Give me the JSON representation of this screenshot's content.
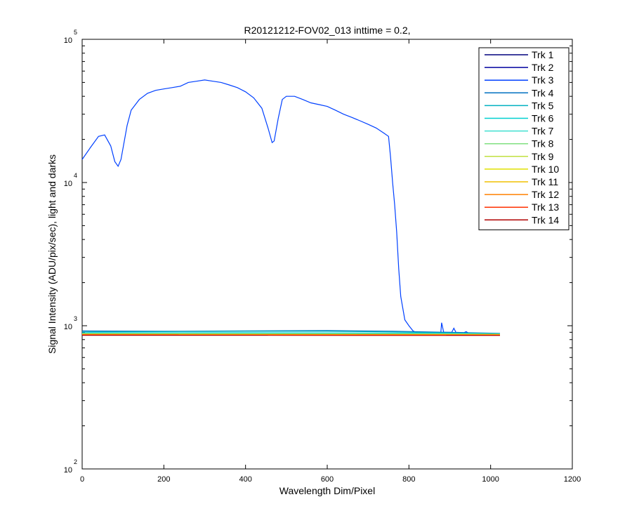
{
  "chart_data": {
    "type": "line",
    "title": "R20121212-FOV02_013 inttime = 0.2,",
    "xlabel": "Wavelength Dim/Pixel",
    "ylabel": "Signal Intensity (ADU/pix/sec), light and darks",
    "xlim": [
      0,
      1200
    ],
    "ylim": [
      100,
      100000
    ],
    "yscale": "log",
    "x_ticks": [
      0,
      200,
      400,
      600,
      800,
      1000,
      1200
    ],
    "x_tick_labels": [
      "0",
      "200",
      "400",
      "600",
      "800",
      "1000",
      "1200"
    ],
    "y_ticks": [
      {
        "value": 100,
        "base": "10",
        "exp": "2"
      },
      {
        "value": 1000,
        "base": "10",
        "exp": "3"
      },
      {
        "value": 10000,
        "base": "10",
        "exp": "4"
      },
      {
        "value": 100000,
        "base": "10",
        "exp": "5"
      }
    ],
    "grid": false,
    "legend_position": "top-right",
    "series": [
      {
        "name": "Trk 1",
        "color": "#00007f",
        "points": [
          [
            0,
            870
          ],
          [
            1023,
            860
          ]
        ]
      },
      {
        "name": "Trk 2",
        "color": "#00009f",
        "points": [
          [
            0,
            872
          ],
          [
            1023,
            862
          ]
        ]
      },
      {
        "name": "Trk 3",
        "color": "#0040ff",
        "points": [
          [
            0,
            14500
          ],
          [
            20,
            17500
          ],
          [
            40,
            21000
          ],
          [
            55,
            21500
          ],
          [
            70,
            18000
          ],
          [
            80,
            14000
          ],
          [
            88,
            13000
          ],
          [
            95,
            14500
          ],
          [
            110,
            25000
          ],
          [
            120,
            32000
          ],
          [
            140,
            38000
          ],
          [
            160,
            42000
          ],
          [
            180,
            44000
          ],
          [
            200,
            45000
          ],
          [
            220,
            46000
          ],
          [
            240,
            47000
          ],
          [
            260,
            50000
          ],
          [
            280,
            51000
          ],
          [
            300,
            52000
          ],
          [
            320,
            51000
          ],
          [
            340,
            50000
          ],
          [
            360,
            48000
          ],
          [
            380,
            46000
          ],
          [
            400,
            43000
          ],
          [
            420,
            39000
          ],
          [
            440,
            33000
          ],
          [
            455,
            24000
          ],
          [
            465,
            19000
          ],
          [
            470,
            19500
          ],
          [
            480,
            28000
          ],
          [
            490,
            38000
          ],
          [
            500,
            40000
          ],
          [
            520,
            40000
          ],
          [
            540,
            38000
          ],
          [
            560,
            36000
          ],
          [
            580,
            35000
          ],
          [
            600,
            34000
          ],
          [
            620,
            32000
          ],
          [
            640,
            30000
          ],
          [
            660,
            28500
          ],
          [
            680,
            27000
          ],
          [
            700,
            25500
          ],
          [
            720,
            24000
          ],
          [
            740,
            22000
          ],
          [
            750,
            21000
          ],
          [
            755,
            15000
          ],
          [
            760,
            10000
          ],
          [
            765,
            7000
          ],
          [
            770,
            4500
          ],
          [
            775,
            2500
          ],
          [
            780,
            1600
          ],
          [
            790,
            1100
          ],
          [
            800,
            1000
          ],
          [
            810,
            920
          ],
          [
            820,
            890
          ],
          [
            870,
            885
          ],
          [
            878,
            890
          ],
          [
            880,
            1050
          ],
          [
            885,
            900
          ],
          [
            905,
            900
          ],
          [
            910,
            960
          ],
          [
            915,
            900
          ],
          [
            935,
            895
          ],
          [
            940,
            910
          ],
          [
            945,
            890
          ],
          [
            1023,
            880
          ]
        ]
      },
      {
        "name": "Trk 4",
        "color": "#0070c0",
        "points": [
          [
            0,
            920
          ],
          [
            200,
            915
          ],
          [
            400,
            920
          ],
          [
            600,
            925
          ],
          [
            760,
            915
          ],
          [
            1023,
            885
          ]
        ]
      },
      {
        "name": "Trk 5",
        "color": "#00b0c0",
        "points": [
          [
            0,
            905
          ],
          [
            200,
            910
          ],
          [
            400,
            915
          ],
          [
            600,
            915
          ],
          [
            760,
            905
          ],
          [
            1023,
            880
          ]
        ]
      },
      {
        "name": "Trk 6",
        "color": "#00d0d0",
        "points": [
          [
            0,
            890
          ],
          [
            400,
            893
          ],
          [
            800,
            888
          ],
          [
            1023,
            878
          ]
        ]
      },
      {
        "name": "Trk 7",
        "color": "#40e0d0",
        "points": [
          [
            0,
            882
          ],
          [
            400,
            884
          ],
          [
            800,
            880
          ],
          [
            1023,
            875
          ]
        ]
      },
      {
        "name": "Trk 8",
        "color": "#80e080",
        "points": [
          [
            0,
            878
          ],
          [
            1023,
            872
          ]
        ]
      },
      {
        "name": "Trk 9",
        "color": "#c0e040",
        "points": [
          [
            0,
            876
          ],
          [
            1023,
            870
          ]
        ]
      },
      {
        "name": "Trk 10",
        "color": "#e0e000",
        "points": [
          [
            0,
            874
          ],
          [
            1023,
            868
          ]
        ]
      },
      {
        "name": "Trk 11",
        "color": "#f0c000",
        "points": [
          [
            0,
            870
          ],
          [
            1023,
            866
          ]
        ]
      },
      {
        "name": "Trk 12",
        "color": "#ff8000",
        "points": [
          [
            0,
            866
          ],
          [
            1023,
            862
          ]
        ]
      },
      {
        "name": "Trk 13",
        "color": "#ff3000",
        "points": [
          [
            0,
            862
          ],
          [
            1023,
            858
          ]
        ]
      },
      {
        "name": "Trk 14",
        "color": "#b00000",
        "points": [
          [
            0,
            858
          ],
          [
            1023,
            856
          ]
        ]
      }
    ]
  }
}
